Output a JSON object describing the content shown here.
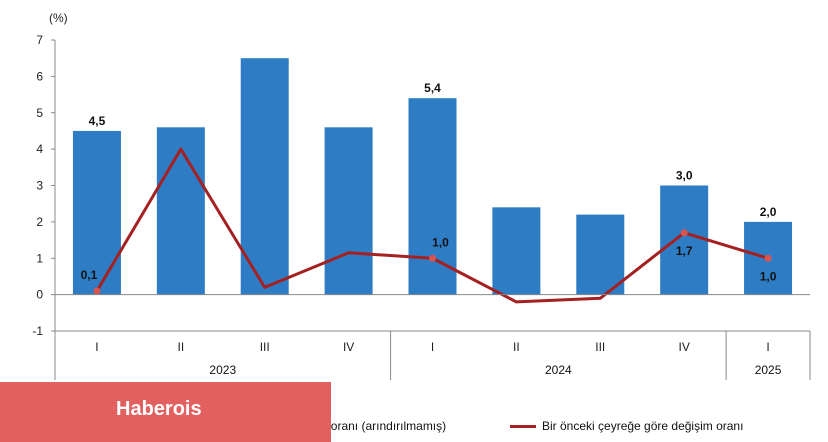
{
  "chart_data": {
    "type": "bar+line",
    "unit_label": "(%)",
    "ylim": [
      -1,
      7
    ],
    "yticks": [
      -1,
      0,
      1,
      2,
      3,
      4,
      5,
      6,
      7
    ],
    "categories": [
      "I",
      "II",
      "III",
      "IV",
      "I",
      "II",
      "III",
      "IV",
      "I"
    ],
    "groups": [
      {
        "label": "2023",
        "count": 4
      },
      {
        "label": "2024",
        "count": 4
      },
      {
        "label": "2025",
        "count": 1
      }
    ],
    "series": [
      {
        "name": "Bir önceki yılın aynı çeyreğine göre değişim oranı (arındırılmamış)",
        "type": "bar",
        "values": [
          4.5,
          4.6,
          6.5,
          4.6,
          5.4,
          2.4,
          2.2,
          3.0,
          2.0
        ],
        "labels": [
          "4,5",
          "",
          "",
          "",
          "5,4",
          "",
          "",
          "3,0",
          "2,0"
        ]
      },
      {
        "name": "Bir önceki çeyreğe göre değişim oranı",
        "type": "line",
        "values": [
          0.1,
          4.0,
          0.2,
          1.15,
          1.0,
          -0.2,
          -0.1,
          1.7,
          1.0
        ],
        "labels": [
          "0,1",
          "",
          "",
          "",
          "1,0",
          "",
          "",
          "1,7",
          "1,0"
        ]
      }
    ],
    "colors": {
      "bar": "#2e7cc4",
      "line": "#a52020",
      "marker": "#d9534f"
    }
  },
  "watermark": "Haberois",
  "legend": {
    "bar_label": "Bir önceki yılın aynı çeyreğine göre değişim oranı (arındırılmamış)",
    "line_label": "Bir önceki çeyreğe göre değişim oranı"
  }
}
